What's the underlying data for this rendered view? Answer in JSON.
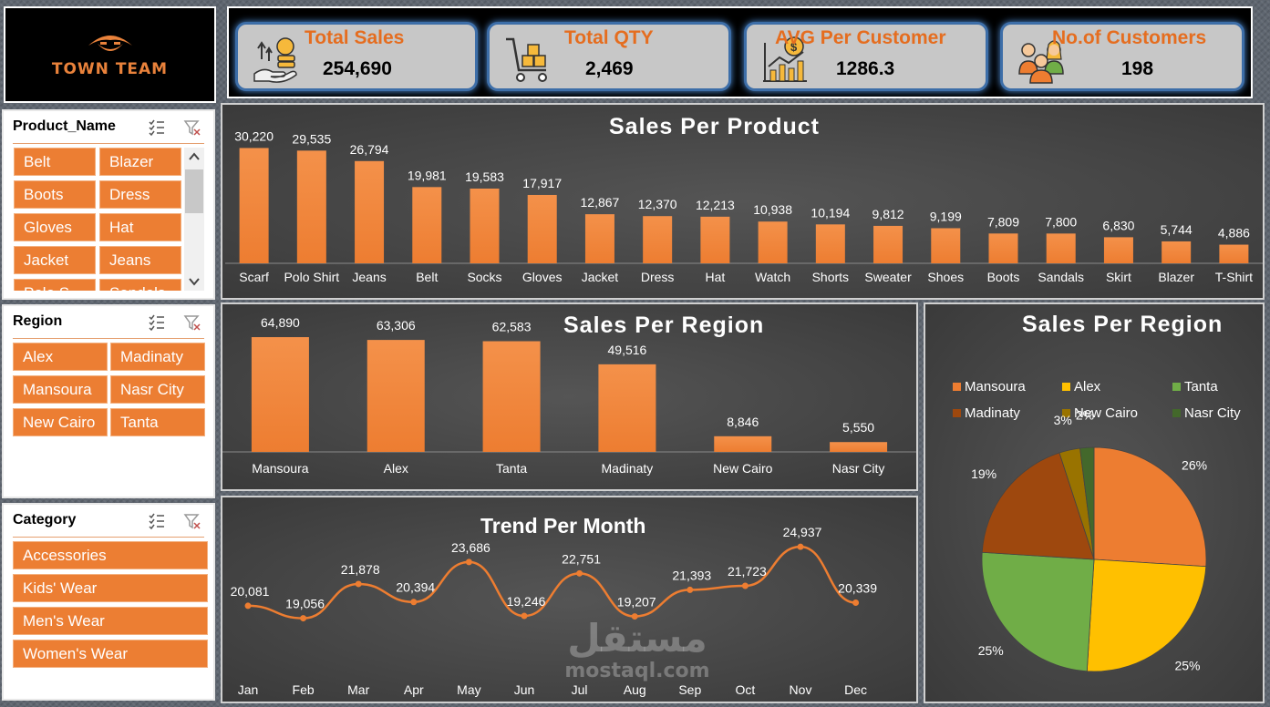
{
  "logo": {
    "brand": "TOWN TEAM"
  },
  "kpis": [
    {
      "title": "Total Sales",
      "value": "254,690",
      "icon": "sales-money-icon"
    },
    {
      "title": "Total QTY",
      "value": "2,469",
      "icon": "cart-boxes-icon"
    },
    {
      "title": "AVG Per Customer",
      "value": "1286.3",
      "icon": "chart-coin-icon"
    },
    {
      "title": "No.of Customers",
      "value": "198",
      "icon": "customers-group-icon"
    }
  ],
  "slicers": {
    "product": {
      "header": "Product_Name",
      "items": [
        "Belt",
        "Blazer",
        "Boots",
        "Dress",
        "Gloves",
        "Hat",
        "Jacket",
        "Jeans",
        "Polo S",
        "Sandals"
      ]
    },
    "region": {
      "header": "Region",
      "items": [
        "Alex",
        "Madinaty",
        "Mansoura",
        "Nasr City",
        "New Cairo",
        "Tanta"
      ]
    },
    "category": {
      "header": "Category",
      "items": [
        "Accessories",
        "Kids' Wear",
        "Men's Wear",
        "Women's Wear"
      ]
    }
  },
  "watermark": {
    "arabic": "مستقل",
    "latin": "mostaql.com"
  },
  "chart_data": [
    {
      "type": "bar",
      "title": "Sales Per Product",
      "categories": [
        "Scarf",
        "Polo Shirt",
        "Jeans",
        "Belt",
        "Socks",
        "Gloves",
        "Jacket",
        "Dress",
        "Hat",
        "Watch",
        "Shorts",
        "Sweater",
        "Shoes",
        "Boots",
        "Sandals",
        "Skirt",
        "Blazer",
        "T-Shirt"
      ],
      "values": [
        30220,
        29535,
        26794,
        19981,
        19583,
        17917,
        12867,
        12370,
        12213,
        10938,
        10194,
        9812,
        9199,
        7809,
        7800,
        6830,
        5744,
        4886
      ],
      "labels": [
        "30,220",
        "29,535",
        "26,794",
        "19,981",
        "19,583",
        "17,917",
        "12,867",
        "12,370",
        "12,213",
        "10,938",
        "10,194",
        "9,812",
        "9,199",
        "7,809",
        "7,800",
        "6,830",
        "5,744",
        "4,886"
      ],
      "ylim": [
        0,
        32000
      ],
      "color": "#ed7d31"
    },
    {
      "type": "bar",
      "title": "Sales Per Region",
      "categories": [
        "Mansoura",
        "Alex",
        "Tanta",
        "Madinaty",
        "New Cairo",
        "Nasr City"
      ],
      "values": [
        64890,
        63306,
        62583,
        49516,
        8846,
        5550
      ],
      "labels": [
        "64,890",
        "63,306",
        "62,583",
        "49,516",
        "8,846",
        "5,550"
      ],
      "ylim": [
        0,
        68000
      ],
      "color": "#ed7d31"
    },
    {
      "type": "line",
      "title": "Trend Per Month",
      "categories": [
        "Jan",
        "Feb",
        "Mar",
        "Apr",
        "May",
        "Jun",
        "Jul",
        "Aug",
        "Sep",
        "Oct",
        "Nov",
        "Dec"
      ],
      "values": [
        20081,
        19056,
        21878,
        20394,
        23686,
        19246,
        22751,
        19207,
        21393,
        21723,
        24937,
        20339
      ],
      "labels": [
        "20,081",
        "19,056",
        "21,878",
        "20,394",
        "23,686",
        "19,246",
        "22,751",
        "19,207",
        "21,393",
        "21,723",
        "24,937",
        "20,339"
      ],
      "ylim": [
        14000,
        26000
      ],
      "color": "#ed7d31"
    },
    {
      "type": "pie",
      "title": "Sales Per Region",
      "legend": "top",
      "slices": [
        {
          "name": "Mansoura",
          "value": 26,
          "label": "26%",
          "color": "#ed7d31"
        },
        {
          "name": "Alex",
          "value": 25,
          "label": "25%",
          "color": "#ffc000"
        },
        {
          "name": "Tanta",
          "value": 25,
          "label": "25%",
          "color": "#70ad47"
        },
        {
          "name": "Madinaty",
          "value": 19,
          "label": "19%",
          "color": "#9e480e"
        },
        {
          "name": "New Cairo",
          "value": 3,
          "label": "3%",
          "color": "#997300"
        },
        {
          "name": "Nasr City",
          "value": 2,
          "label": "2%",
          "color": "#43682b"
        }
      ]
    }
  ]
}
